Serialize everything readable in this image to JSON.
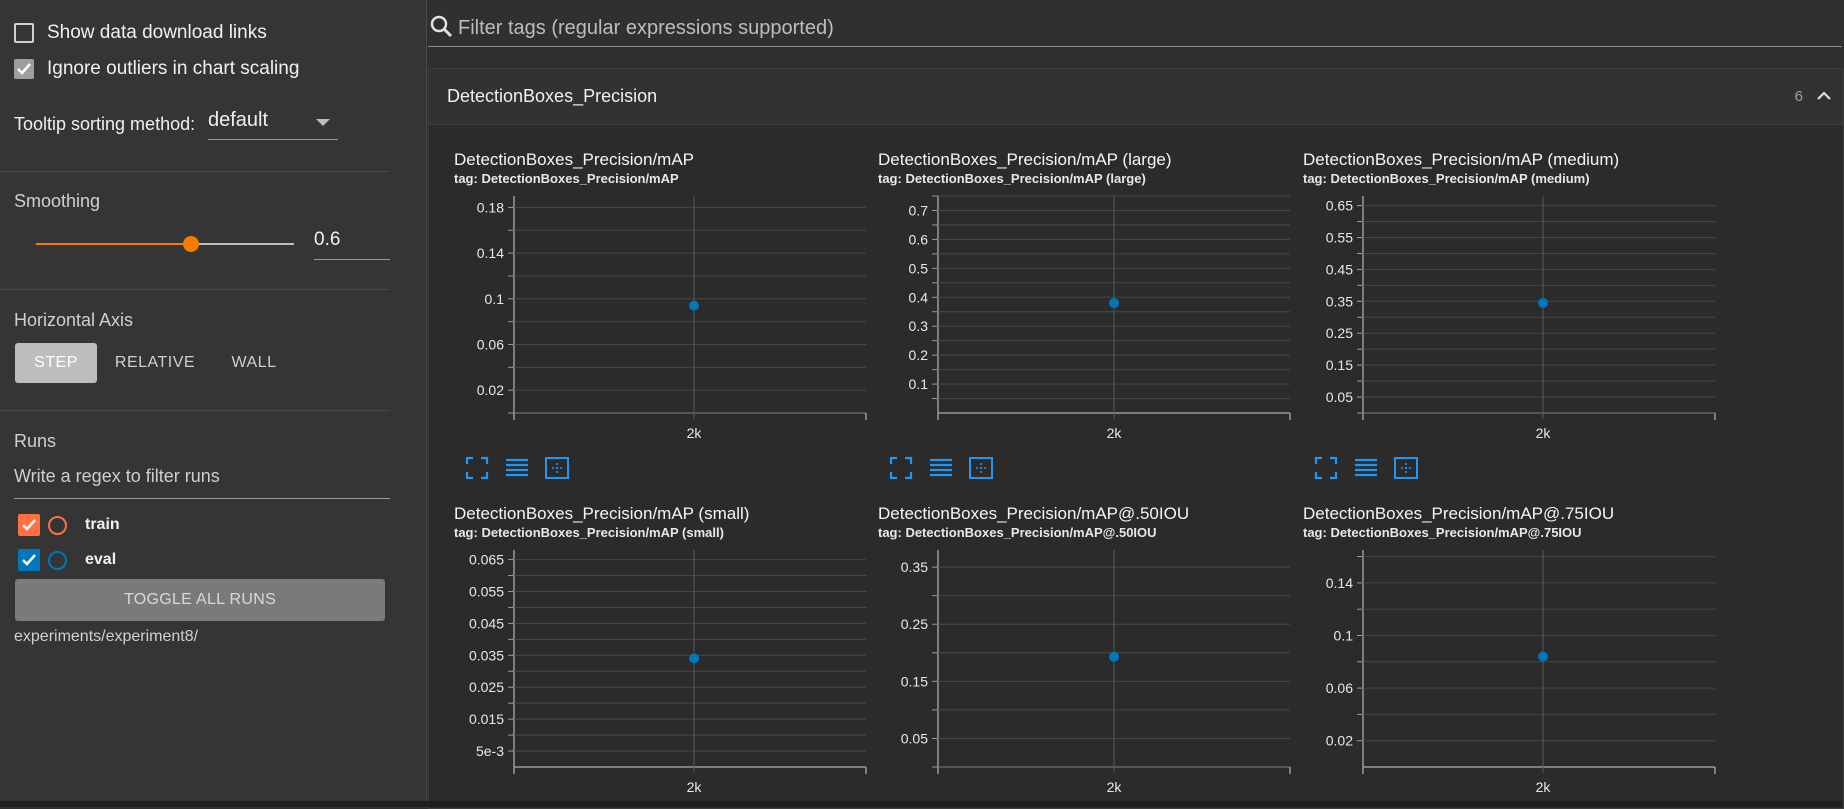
{
  "sidebar": {
    "show_download_links": "Show data download links",
    "ignore_outliers": "Ignore outliers in chart scaling",
    "tooltip_label": "Tooltip sorting method:",
    "tooltip_value": "default",
    "smoothing_title": "Smoothing",
    "smoothing_value": "0.6",
    "smoothing_fraction": 0.6,
    "haxis_title": "Horizontal Axis",
    "haxis_options": [
      "STEP",
      "RELATIVE",
      "WALL"
    ],
    "haxis_selected": "STEP",
    "runs_title": "Runs",
    "runs_filter_placeholder": "Write a regex to filter runs",
    "runs": [
      {
        "name": "train",
        "color": "#ff7043",
        "checked": true
      },
      {
        "name": "eval",
        "color": "#0077bb",
        "checked": true
      }
    ],
    "toggle_all": "TOGGLE ALL RUNS",
    "experiment_path": "experiments/experiment8/"
  },
  "search": {
    "placeholder": "Filter tags (regular expressions supported)"
  },
  "card": {
    "title": "DetectionBoxes_Precision",
    "count": "6"
  },
  "colors": {
    "accent": "#f57c00",
    "point": "#0077bb",
    "tool": "#2196f3"
  },
  "icons": [
    "search-icon",
    "checkmark-icon",
    "chevron-up-icon",
    "fullscreen-icon",
    "data-table-icon",
    "fit-domain-icon"
  ],
  "chart_data": [
    {
      "type": "scatter",
      "title": "DetectionBoxes_Precision/mAP",
      "tag": "tag: DetectionBoxes_Precision/mAP",
      "yticks": [
        "0.18",
        "0.14",
        "0.1",
        "0.06",
        "0.02"
      ],
      "ytick_values": [
        0.18,
        0.14,
        0.1,
        0.06,
        0.02
      ],
      "ylim": [
        0,
        0.19
      ],
      "xticks": [
        "2k"
      ],
      "points": [
        {
          "x": "2k",
          "y": 0.094
        }
      ]
    },
    {
      "type": "scatter",
      "title": "DetectionBoxes_Precision/mAP (large)",
      "tag": "tag: DetectionBoxes_Precision/mAP (large)",
      "yticks": [
        "0.7",
        "0.6",
        "0.5",
        "0.4",
        "0.3",
        "0.2",
        "0.1"
      ],
      "ytick_values": [
        0.7,
        0.6,
        0.5,
        0.4,
        0.3,
        0.2,
        0.1
      ],
      "ylim": [
        0,
        0.75
      ],
      "xticks": [
        "2k"
      ],
      "points": [
        {
          "x": "2k",
          "y": 0.38
        }
      ]
    },
    {
      "type": "scatter",
      "title": "DetectionBoxes_Precision/mAP (medium)",
      "tag": "tag: DetectionBoxes_Precision/mAP (medium)",
      "yticks": [
        "0.65",
        "0.55",
        "0.45",
        "0.35",
        "0.25",
        "0.15",
        "0.05"
      ],
      "ytick_values": [
        0.65,
        0.55,
        0.45,
        0.35,
        0.25,
        0.15,
        0.05
      ],
      "ylim": [
        0,
        0.68
      ],
      "xticks": [
        "2k"
      ],
      "points": [
        {
          "x": "2k",
          "y": 0.345
        }
      ]
    },
    {
      "type": "scatter",
      "title": "DetectionBoxes_Precision/mAP (small)",
      "tag": "tag: DetectionBoxes_Precision/mAP (small)",
      "yticks": [
        "0.065",
        "0.055",
        "0.045",
        "0.035",
        "0.025",
        "0.015",
        "5e-3"
      ],
      "ytick_values": [
        0.065,
        0.055,
        0.045,
        0.035,
        0.025,
        0.015,
        0.005
      ],
      "ylim": [
        0,
        0.068
      ],
      "xticks": [
        "2k"
      ],
      "points": [
        {
          "x": "2k",
          "y": 0.034
        }
      ]
    },
    {
      "type": "scatter",
      "title": "DetectionBoxes_Precision/mAP@.50IOU",
      "tag": "tag: DetectionBoxes_Precision/mAP@.50IOU",
      "yticks": [
        "0.35",
        "0.25",
        "0.15",
        "0.05"
      ],
      "ytick_values": [
        0.35,
        0.25,
        0.15,
        0.05
      ],
      "ylim": [
        0,
        0.38
      ],
      "xticks": [
        "2k"
      ],
      "points": [
        {
          "x": "2k",
          "y": 0.193
        }
      ]
    },
    {
      "type": "scatter",
      "title": "DetectionBoxes_Precision/mAP@.75IOU",
      "tag": "tag: DetectionBoxes_Precision/mAP@.75IOU",
      "yticks": [
        "0.14",
        "0.1",
        "0.06",
        "0.02"
      ],
      "ytick_values": [
        0.14,
        0.1,
        0.06,
        0.02
      ],
      "ylim": [
        0,
        0.165
      ],
      "xticks": [
        "2k"
      ],
      "points": [
        {
          "x": "2k",
          "y": 0.084
        }
      ]
    }
  ]
}
